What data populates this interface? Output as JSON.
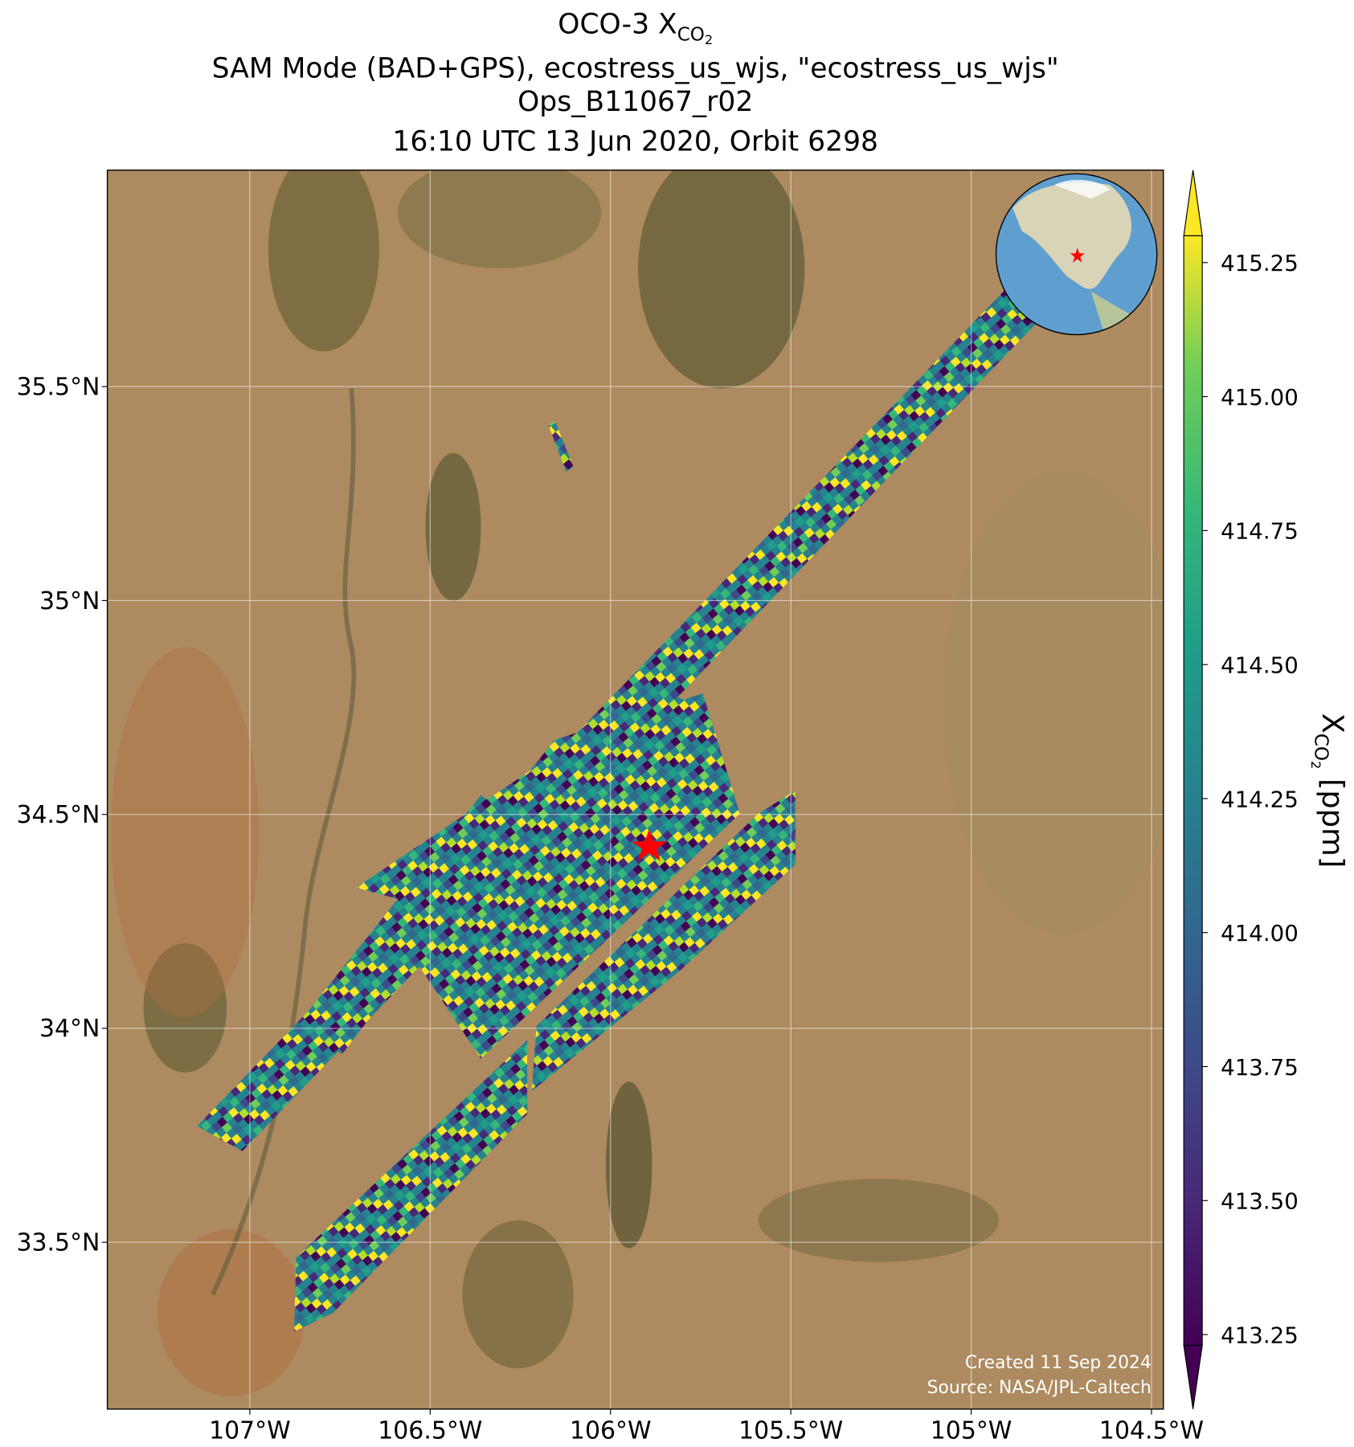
{
  "title": {
    "line1": {
      "text": "OCO-3 X",
      "sub": "CO",
      "subsub": "2"
    },
    "line2": "SAM Mode (BAD+GPS), ecostress_us_wjs, \"ecostress_us_wjs\"",
    "line3": "Ops_B11067_r02",
    "line4": "16:10 UTC 13 Jun 2020, Orbit 6298"
  },
  "map": {
    "xlim": [
      -107.395,
      -104.467
    ],
    "ylim": [
      33.11,
      36.006
    ],
    "xticks": [
      {
        "value": -107,
        "label": "107°W"
      },
      {
        "value": -106.5,
        "label": "106.5°W"
      },
      {
        "value": -106,
        "label": "106°W"
      },
      {
        "value": -105.5,
        "label": "105.5°W"
      },
      {
        "value": -105,
        "label": "105°W"
      },
      {
        "value": -104.5,
        "label": "104.5°W"
      }
    ],
    "yticks": [
      {
        "value": 33.5,
        "label": "33.5°N"
      },
      {
        "value": 34,
        "label": "34°N"
      },
      {
        "value": 34.5,
        "label": "34.5°N"
      },
      {
        "value": 35,
        "label": "35°N"
      },
      {
        "value": 35.5,
        "label": "35.5°N"
      }
    ],
    "grid": true
  },
  "colorbar": {
    "label": {
      "main": "X",
      "sub": "CO",
      "subsub": "2",
      "unit": " [ppm]"
    },
    "ylim": [
      413.23,
      415.3
    ],
    "ticks": [
      413.25,
      {
        "value": 413.5,
        "label": "413.50"
      },
      413.75,
      {
        "value": 414,
        "label": "414.00"
      },
      414.25,
      {
        "value": 414.5,
        "label": "414.50"
      },
      414.75,
      {
        "value": 415,
        "label": "415.00"
      },
      415.25
    ]
  },
  "credits": [
    "Created 11 Sep 2024",
    "Source: NASA/JPL-Caltech"
  ]
}
